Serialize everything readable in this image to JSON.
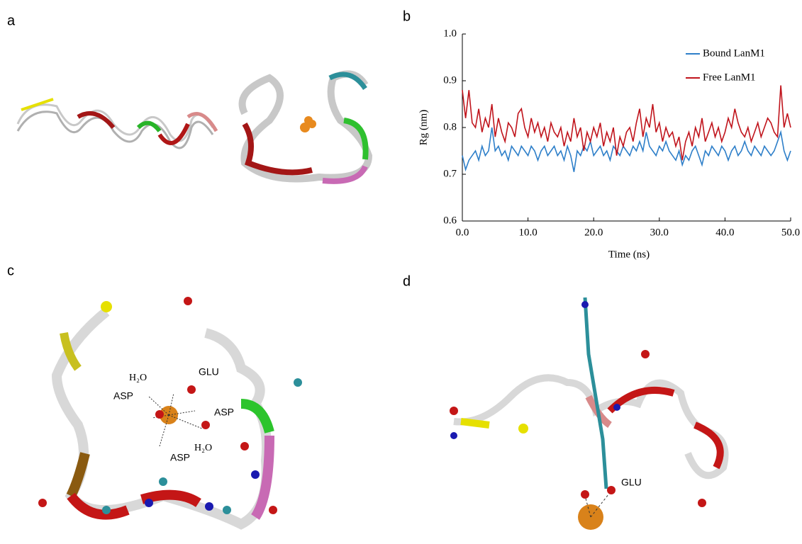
{
  "panel_labels": [
    "a",
    "b",
    "c",
    "d"
  ],
  "chart_data": {
    "type": "line",
    "xlabel": "Time (ns)",
    "ylabel": "Rg (nm)",
    "xlim": [
      0,
      50
    ],
    "ylim": [
      0.6,
      1
    ],
    "xticks": [
      {
        "value": 0,
        "label": "0.0"
      },
      {
        "value": 10,
        "label": "10.0"
      },
      {
        "value": 20,
        "label": "20.0"
      },
      {
        "value": 30,
        "label": "30.0"
      },
      {
        "value": 40,
        "label": "40.0"
      },
      {
        "value": 50,
        "label": "50.0"
      }
    ],
    "yticks": [
      0.6,
      0.7,
      0.8,
      0.9,
      {
        "value": 1,
        "label": "1.0"
      }
    ],
    "legend": "upper right",
    "x": [
      0,
      0.5,
      1,
      1.5,
      2,
      2.5,
      3,
      3.5,
      4,
      4.5,
      5,
      5.5,
      6,
      6.5,
      7,
      7.5,
      8,
      8.5,
      9,
      9.5,
      10,
      10.5,
      11,
      11.5,
      12,
      12.5,
      13,
      13.5,
      14,
      14.5,
      15,
      15.5,
      16,
      16.5,
      17,
      17.5,
      18,
      18.5,
      19,
      19.5,
      20,
      20.5,
      21,
      21.5,
      22,
      22.5,
      23,
      23.5,
      24,
      24.5,
      25,
      25.5,
      26,
      26.5,
      27,
      27.5,
      28,
      28.5,
      29,
      29.5,
      30,
      30.5,
      31,
      31.5,
      32,
      32.5,
      33,
      33.5,
      34,
      34.5,
      35,
      35.5,
      36,
      36.5,
      37,
      37.5,
      38,
      38.5,
      39,
      39.5,
      40,
      40.5,
      41,
      41.5,
      42,
      42.5,
      43,
      43.5,
      44,
      44.5,
      45,
      45.5,
      46,
      46.5,
      47,
      47.5,
      48,
      48.5,
      49,
      49.5,
      50
    ],
    "series": [
      {
        "name": "Bound LanM1",
        "color": "#2e7fc9",
        "values": [
          0.74,
          0.71,
          0.73,
          0.74,
          0.75,
          0.73,
          0.76,
          0.74,
          0.75,
          0.8,
          0.75,
          0.76,
          0.74,
          0.75,
          0.73,
          0.76,
          0.75,
          0.74,
          0.76,
          0.75,
          0.74,
          0.76,
          0.75,
          0.73,
          0.75,
          0.76,
          0.74,
          0.75,
          0.76,
          0.74,
          0.75,
          0.73,
          0.76,
          0.74,
          0.705,
          0.75,
          0.74,
          0.76,
          0.75,
          0.77,
          0.74,
          0.75,
          0.76,
          0.74,
          0.75,
          0.73,
          0.76,
          0.75,
          0.74,
          0.76,
          0.75,
          0.74,
          0.76,
          0.75,
          0.77,
          0.75,
          0.79,
          0.76,
          0.75,
          0.74,
          0.76,
          0.75,
          0.77,
          0.75,
          0.74,
          0.73,
          0.75,
          0.72,
          0.74,
          0.73,
          0.75,
          0.76,
          0.74,
          0.72,
          0.75,
          0.74,
          0.76,
          0.75,
          0.74,
          0.76,
          0.75,
          0.73,
          0.75,
          0.76,
          0.74,
          0.75,
          0.77,
          0.75,
          0.74,
          0.76,
          0.75,
          0.74,
          0.76,
          0.75,
          0.74,
          0.75,
          0.77,
          0.79,
          0.75,
          0.73,
          0.75
        ]
      },
      {
        "name": "Free LanM1",
        "color": "#c0141c",
        "values": [
          0.88,
          0.82,
          0.88,
          0.81,
          0.8,
          0.84,
          0.79,
          0.82,
          0.8,
          0.85,
          0.78,
          0.82,
          0.79,
          0.77,
          0.81,
          0.8,
          0.78,
          0.83,
          0.84,
          0.8,
          0.78,
          0.82,
          0.79,
          0.81,
          0.78,
          0.8,
          0.77,
          0.81,
          0.79,
          0.78,
          0.8,
          0.76,
          0.79,
          0.77,
          0.82,
          0.78,
          0.8,
          0.75,
          0.79,
          0.77,
          0.8,
          0.78,
          0.81,
          0.76,
          0.79,
          0.77,
          0.8,
          0.74,
          0.78,
          0.76,
          0.79,
          0.8,
          0.77,
          0.81,
          0.84,
          0.78,
          0.82,
          0.8,
          0.85,
          0.79,
          0.81,
          0.77,
          0.8,
          0.78,
          0.79,
          0.76,
          0.78,
          0.73,
          0.77,
          0.79,
          0.76,
          0.8,
          0.78,
          0.82,
          0.77,
          0.79,
          0.81,
          0.78,
          0.8,
          0.77,
          0.79,
          0.82,
          0.8,
          0.84,
          0.81,
          0.79,
          0.78,
          0.8,
          0.77,
          0.79,
          0.81,
          0.78,
          0.8,
          0.82,
          0.81,
          0.79,
          0.78,
          0.89,
          0.8,
          0.83,
          0.8
        ]
      }
    ]
  },
  "panel_c_labels": [
    "H₂O",
    "GLU",
    "ASP",
    "ASP",
    "H₂O",
    "ASP"
  ],
  "panel_d_labels": [
    "GLU"
  ]
}
